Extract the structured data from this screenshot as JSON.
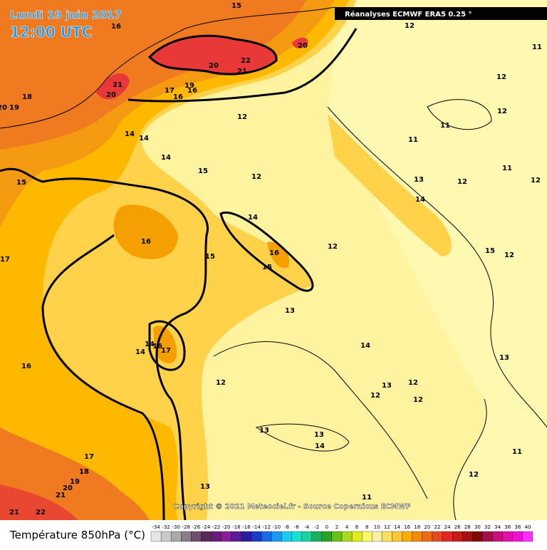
{
  "header": {
    "date": "Lundi 19 juin 2017",
    "time": "12:00 UTC",
    "source": "Réanalyses ECMWF ERA5 0.25 °"
  },
  "contour_labels": [
    15,
    16,
    12,
    20,
    22,
    20,
    21,
    21,
    20,
    17,
    19,
    16,
    16,
    18,
    20,
    19,
    11,
    12,
    12,
    11,
    12,
    11,
    14,
    14,
    14,
    15,
    12,
    11,
    13,
    12,
    12,
    15,
    14,
    14,
    16,
    16,
    12,
    15,
    12,
    17,
    15,
    15,
    13,
    14,
    14,
    16,
    17,
    14,
    13,
    16,
    12,
    13,
    12,
    12,
    12,
    13,
    13,
    14,
    11,
    17,
    18,
    12,
    19,
    20,
    21,
    13,
    11,
    21,
    22
  ],
  "copyright": "Copyright © 2021 Meteociel.fr - Source Copernicus ECMWF",
  "legend": {
    "title": "Température 850hPa (°C)",
    "ticks": [
      -34,
      -32,
      -30,
      -28,
      -26,
      -24,
      -22,
      -20,
      -18,
      -16,
      -14,
      -12,
      -10,
      -8,
      -6,
      -4,
      -2,
      0,
      2,
      4,
      6,
      8,
      10,
      12,
      14,
      16,
      18,
      20,
      22,
      24,
      26,
      28,
      30,
      32,
      34,
      36,
      38,
      40
    ],
    "colors": [
      "#e6e6e6",
      "#c8c8c8",
      "#aaaaaa",
      "#8c7c8c",
      "#6e4e6e",
      "#5a2a5a",
      "#6a1a7a",
      "#8a1aa0",
      "#5a1a9a",
      "#2a1aa0",
      "#1a3ac8",
      "#1a6ae0",
      "#1a9af0",
      "#1acaf0",
      "#1ae0d0",
      "#1ad0a0",
      "#1ab060",
      "#2aa02a",
      "#6ac01a",
      "#aad81a",
      "#dcec1a",
      "#fafa60",
      "#fff0a0",
      "#ffe060",
      "#ffc830",
      "#ffaa00",
      "#f58a00",
      "#f06a10",
      "#e84820",
      "#e02828",
      "#c81a1a",
      "#a01414",
      "#800a0a",
      "#a0104a",
      "#c8107a",
      "#e010aa",
      "#f010d0",
      "#ff30ff"
    ]
  }
}
